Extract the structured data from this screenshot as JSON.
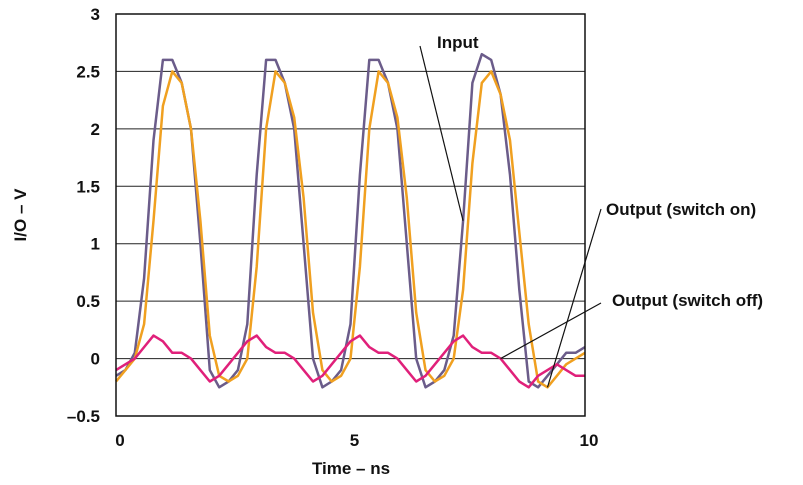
{
  "chart_data": {
    "type": "line",
    "xlabel": "Time – ns",
    "ylabel": "I/O – V",
    "xlim": [
      0,
      10
    ],
    "ylim": [
      -0.5,
      3
    ],
    "xticks": [
      {
        "value": 0,
        "label": "0"
      },
      {
        "value": 5,
        "label": "5"
      },
      {
        "value": 10,
        "label": "10"
      }
    ],
    "yticks": [
      {
        "value": 3,
        "label": "3"
      },
      {
        "value": 2.5,
        "label": "2.5"
      },
      {
        "value": 2,
        "label": "2"
      },
      {
        "value": 1.5,
        "label": "1.5"
      },
      {
        "value": 1,
        "label": "1"
      },
      {
        "value": 0.5,
        "label": "0.5"
      },
      {
        "value": 0,
        "label": "0"
      },
      {
        "value": -0.5,
        "label": "–0.5"
      }
    ],
    "grid": {
      "horizontal": true,
      "vertical": false
    },
    "series": [
      {
        "name": "Input",
        "color": "#6b5c8a",
        "x": [
          0,
          0.2,
          0.4,
          0.6,
          0.8,
          1.0,
          1.2,
          1.4,
          1.6,
          1.8,
          2.0,
          2.2,
          2.4,
          2.6,
          2.8,
          3.0,
          3.2,
          3.4,
          3.6,
          3.8,
          4.0,
          4.2,
          4.4,
          4.6,
          4.8,
          5.0,
          5.2,
          5.4,
          5.6,
          5.8,
          6.0,
          6.2,
          6.4,
          6.6,
          6.8,
          7.0,
          7.2,
          7.4,
          7.6,
          7.8,
          8.0,
          8.2,
          8.4,
          8.6,
          8.8,
          9.0,
          9.2,
          9.4,
          9.6,
          9.8,
          10.0
        ],
        "values": [
          -0.15,
          -0.1,
          0.05,
          0.7,
          1.9,
          2.6,
          2.6,
          2.4,
          2.0,
          1.0,
          -0.1,
          -0.25,
          -0.2,
          -0.1,
          0.3,
          1.6,
          2.6,
          2.6,
          2.4,
          2.0,
          1.0,
          0.0,
          -0.25,
          -0.2,
          -0.1,
          0.3,
          1.6,
          2.6,
          2.6,
          2.4,
          2.0,
          1.0,
          0.0,
          -0.25,
          -0.2,
          -0.1,
          0.2,
          1.2,
          2.4,
          2.65,
          2.6,
          2.3,
          1.6,
          0.6,
          -0.2,
          -0.25,
          -0.15,
          -0.05,
          0.05,
          0.05,
          0.1
        ]
      },
      {
        "name": "Output (switch on)",
        "color": "#f0a020",
        "x": [
          0,
          0.2,
          0.4,
          0.6,
          0.8,
          1.0,
          1.2,
          1.4,
          1.6,
          1.8,
          2.0,
          2.2,
          2.4,
          2.6,
          2.8,
          3.0,
          3.2,
          3.4,
          3.6,
          3.8,
          4.0,
          4.2,
          4.4,
          4.6,
          4.8,
          5.0,
          5.2,
          5.4,
          5.6,
          5.8,
          6.0,
          6.2,
          6.4,
          6.6,
          6.8,
          7.0,
          7.2,
          7.4,
          7.6,
          7.8,
          8.0,
          8.2,
          8.4,
          8.6,
          8.8,
          9.0,
          9.2,
          9.4,
          9.6,
          9.8,
          10.0
        ],
        "values": [
          -0.2,
          -0.1,
          0.0,
          0.3,
          1.2,
          2.2,
          2.5,
          2.4,
          2.0,
          1.2,
          0.2,
          -0.15,
          -0.2,
          -0.15,
          0.0,
          0.8,
          2.0,
          2.5,
          2.4,
          2.1,
          1.4,
          0.4,
          -0.1,
          -0.2,
          -0.15,
          0.0,
          0.8,
          2.0,
          2.5,
          2.4,
          2.1,
          1.4,
          0.4,
          -0.1,
          -0.2,
          -0.15,
          0.0,
          0.6,
          1.7,
          2.4,
          2.5,
          2.3,
          1.9,
          1.1,
          0.3,
          -0.2,
          -0.25,
          -0.15,
          -0.05,
          0.0,
          0.05
        ]
      },
      {
        "name": "Output (switch off)",
        "color": "#e0207a",
        "x": [
          0,
          0.2,
          0.4,
          0.6,
          0.8,
          1.0,
          1.2,
          1.4,
          1.6,
          1.8,
          2.0,
          2.2,
          2.4,
          2.6,
          2.8,
          3.0,
          3.2,
          3.4,
          3.6,
          3.8,
          4.0,
          4.2,
          4.4,
          4.6,
          4.8,
          5.0,
          5.2,
          5.4,
          5.6,
          5.8,
          6.0,
          6.2,
          6.4,
          6.6,
          6.8,
          7.0,
          7.2,
          7.4,
          7.6,
          7.8,
          8.0,
          8.2,
          8.4,
          8.6,
          8.8,
          9.0,
          9.2,
          9.4,
          9.6,
          9.8,
          10.0
        ],
        "values": [
          -0.1,
          -0.05,
          0.0,
          0.1,
          0.2,
          0.15,
          0.05,
          0.05,
          0.0,
          -0.1,
          -0.2,
          -0.15,
          -0.05,
          0.05,
          0.15,
          0.2,
          0.1,
          0.05,
          0.05,
          0.0,
          -0.1,
          -0.2,
          -0.15,
          -0.05,
          0.05,
          0.15,
          0.2,
          0.1,
          0.05,
          0.05,
          0.0,
          -0.1,
          -0.2,
          -0.15,
          -0.05,
          0.05,
          0.15,
          0.2,
          0.1,
          0.05,
          0.05,
          0.0,
          -0.1,
          -0.2,
          -0.25,
          -0.15,
          -0.1,
          -0.05,
          -0.1,
          -0.15,
          -0.15
        ]
      }
    ],
    "annotations": [
      {
        "text": "Input",
        "series": "Input"
      },
      {
        "text": "Output (switch on)",
        "series": "Output (switch on)"
      },
      {
        "text": "Output (switch off)",
        "series": "Output (switch off)"
      }
    ]
  }
}
